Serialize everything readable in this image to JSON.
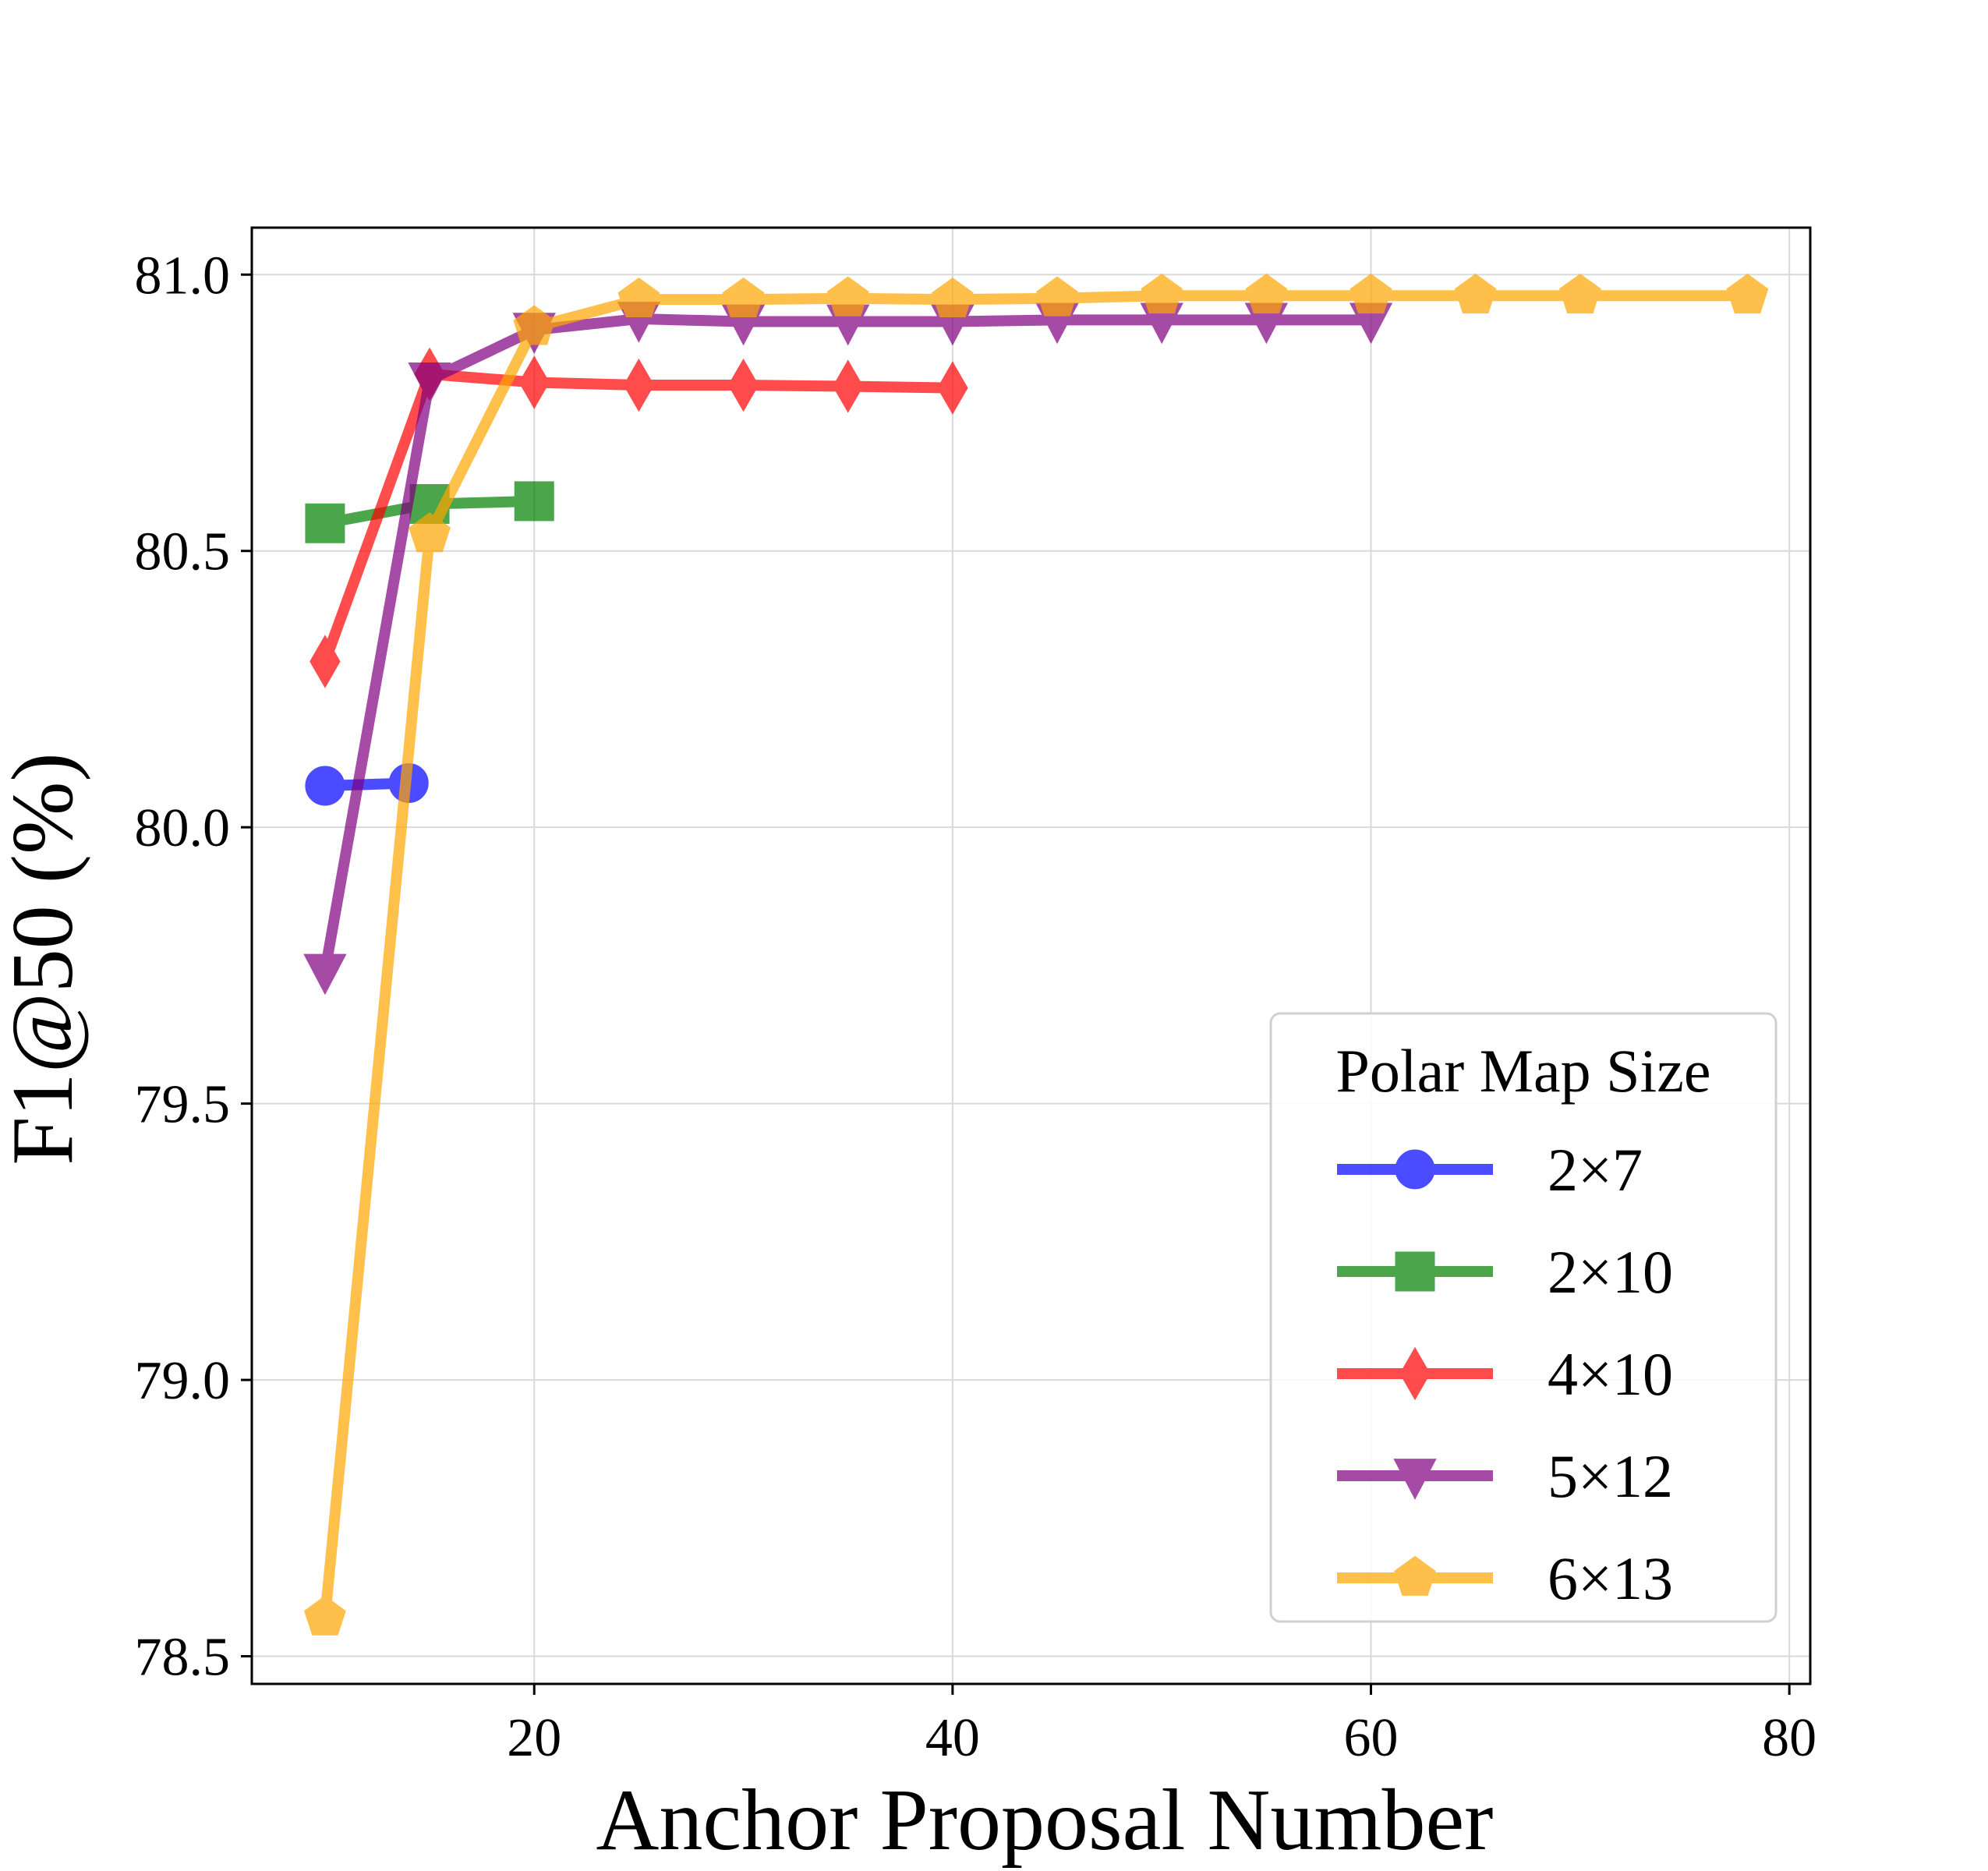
{
  "chart_data": {
    "type": "line",
    "title": "",
    "xlabel": "Anchor Proposal Number",
    "ylabel": "F1@50 (%)",
    "xlim": [
      6.5,
      81
    ],
    "ylim": [
      78.45,
      81.085
    ],
    "xticks": [
      20,
      40,
      60,
      80
    ],
    "xtick_labels": [
      "20",
      "40",
      "60",
      "80"
    ],
    "yticks": [
      78.5,
      79.0,
      79.5,
      80.0,
      80.5,
      81.0
    ],
    "ytick_labels": [
      "78.5",
      "79.0",
      "79.5",
      "80.0",
      "80.5",
      "81.0"
    ],
    "grid": true,
    "legend": {
      "title": "Polar Map Size",
      "position": "lower-right"
    },
    "series": [
      {
        "name": "2×7",
        "color": "#0000ff",
        "marker": "circle",
        "x": [
          10,
          14
        ],
        "y": [
          80.075,
          80.08
        ]
      },
      {
        "name": "2×10",
        "color": "#008000",
        "marker": "square",
        "x": [
          10,
          15,
          20
        ],
        "y": [
          80.55,
          80.585,
          80.59
        ]
      },
      {
        "name": "4×10",
        "color": "#ff0000",
        "marker": "thin_diamond",
        "x": [
          10,
          15,
          20,
          25,
          30,
          35,
          40
        ],
        "y": [
          80.3,
          80.82,
          80.805,
          80.8,
          80.8,
          80.798,
          80.795
        ]
      },
      {
        "name": "5×12",
        "color": "#800080",
        "marker": "triangle_down",
        "x": [
          10,
          15,
          20,
          25,
          30,
          35,
          40,
          45,
          50,
          55,
          60
        ],
        "y": [
          79.74,
          80.81,
          80.9,
          80.92,
          80.915,
          80.915,
          80.915,
          80.918,
          80.918,
          80.918,
          80.918
        ]
      },
      {
        "name": "6×13",
        "color": "#ffa500",
        "marker": "pentagon",
        "x": [
          10,
          15,
          20,
          25,
          30,
          35,
          40,
          45,
          50,
          55,
          60,
          65,
          70,
          78
        ],
        "y": [
          78.57,
          80.53,
          80.905,
          80.955,
          80.955,
          80.957,
          80.955,
          80.957,
          80.962,
          80.962,
          80.962,
          80.962,
          80.962,
          80.962
        ]
      }
    ]
  }
}
